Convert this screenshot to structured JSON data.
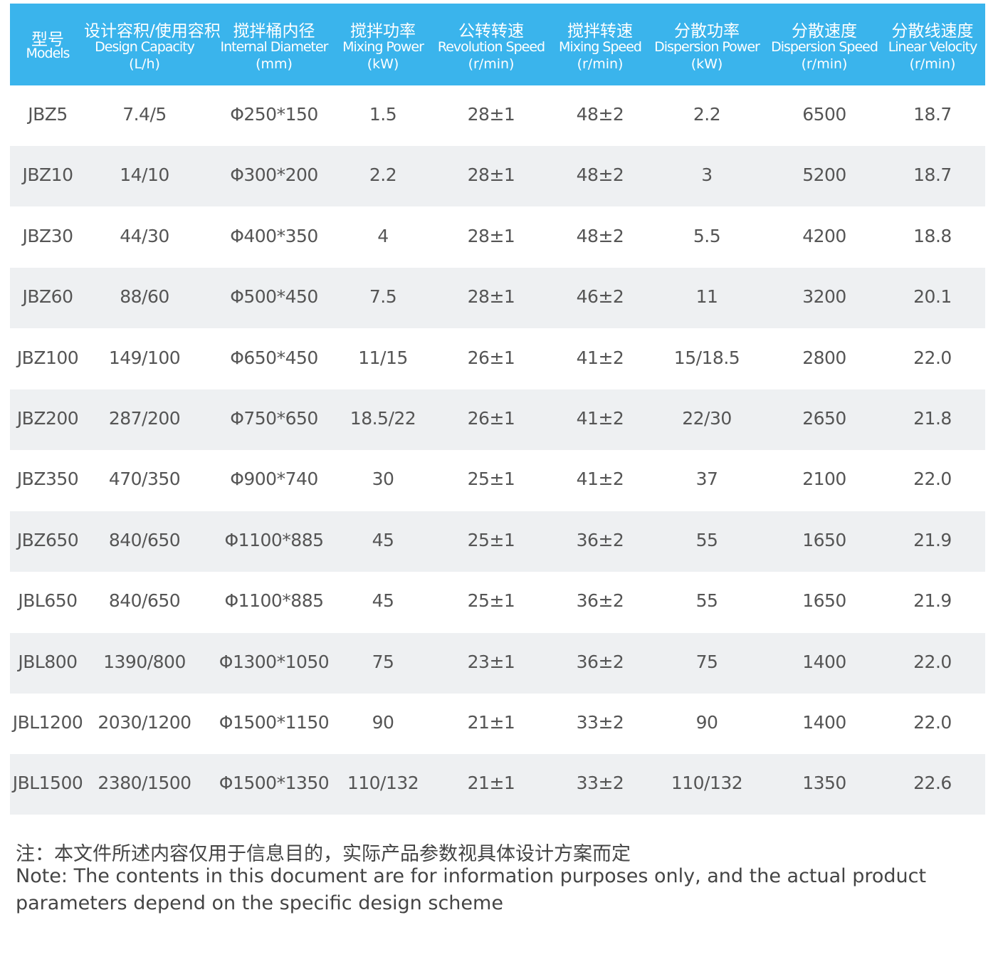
{
  "table": {
    "headers": [
      {
        "zh": "型号",
        "en": "Models"
      },
      {
        "zh": "设计容积/使用容积",
        "en": "Design Capacity",
        "unit": "(L/h)"
      },
      {
        "zh": "搅拌桶内径",
        "en": "Internal Diameter",
        "unit": "(mm)"
      },
      {
        "zh": "搅拌功率",
        "en": "Mixing Power",
        "unit": "(kW)"
      },
      {
        "zh": "公转转速",
        "en": "Revolution Speed",
        "unit": "(r/min)"
      },
      {
        "zh": "搅拌转速",
        "en": "Mixing Speed",
        "unit": "(r/min)"
      },
      {
        "zh": "分散功率",
        "en": "Dispersion Power",
        "unit": "(kW)"
      },
      {
        "zh": "分散速度",
        "en": "Dispersion Speed",
        "unit": "(r/min)"
      },
      {
        "zh": "分散线速度",
        "en": "Linear Velocity",
        "unit": "(r/min)"
      }
    ],
    "rows": [
      [
        "JBZ5",
        "7.4/5",
        "Φ250*150",
        "1.5",
        "28±1",
        "48±2",
        "2.2",
        "6500",
        "18.7"
      ],
      [
        "JBZ10",
        "14/10",
        "Φ300*200",
        "2.2",
        "28±1",
        "48±2",
        "3",
        "5200",
        "18.7"
      ],
      [
        "JBZ30",
        "44/30",
        "Φ400*350",
        "4",
        "28±1",
        "48±2",
        "5.5",
        "4200",
        "18.8"
      ],
      [
        "JBZ60",
        "88/60",
        "Φ500*450",
        "7.5",
        "28±1",
        "46±2",
        "11",
        "3200",
        "20.1"
      ],
      [
        "JBZ100",
        "149/100",
        "Φ650*450",
        "11/15",
        "26±1",
        "41±2",
        "15/18.5",
        "2800",
        "22.0"
      ],
      [
        "JBZ200",
        "287/200",
        "Φ750*650",
        "18.5/22",
        "26±1",
        "41±2",
        "22/30",
        "2650",
        "21.8"
      ],
      [
        "JBZ350",
        "470/350",
        "Φ900*740",
        "30",
        "25±1",
        "41±2",
        "37",
        "2100",
        "22.0"
      ],
      [
        "JBZ650",
        "840/650",
        "Φ1100*885",
        "45",
        "25±1",
        "36±2",
        "55",
        "1650",
        "21.9"
      ],
      [
        "JBL650",
        "840/650",
        "Φ1100*885",
        "45",
        "25±1",
        "36±2",
        "55",
        "1650",
        "21.9"
      ],
      [
        "JBL800",
        "1390/800",
        "Φ1300*1050",
        "75",
        "23±1",
        "36±2",
        "75",
        "1400",
        "22.0"
      ],
      [
        "JBL1200",
        "2030/1200",
        "Φ1500*1150",
        "90",
        "21±1",
        "33±2",
        "90",
        "1400",
        "22.0"
      ],
      [
        "JBL1500",
        "2380/1500",
        "Φ1500*1350",
        "110/132",
        "21±1",
        "33±2",
        "110/132",
        "1350",
        "22.6"
      ]
    ]
  },
  "note": {
    "lines": [
      "注：本文件所述内容仅用于信息目的，实际产品参数视具体设计方案而定",
      "Note: The contents in this document are for information purposes only, and the actual product",
      "parameters depend on the specific design scheme"
    ]
  }
}
